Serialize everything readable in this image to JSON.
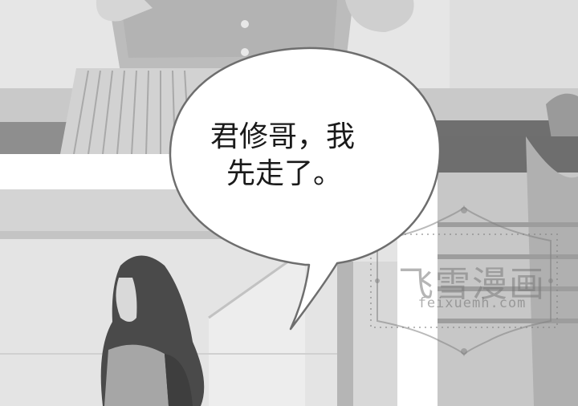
{
  "speech_bubble": {
    "line1": "君修哥，我",
    "line2": "先走了。"
  },
  "watermark": {
    "title": "飞雪漫画",
    "url": "feixuemh.com"
  },
  "colors": {
    "bubble_fill": "#ffffff",
    "bubble_stroke": "#6e6e6e",
    "gutter": "#ffffff"
  }
}
